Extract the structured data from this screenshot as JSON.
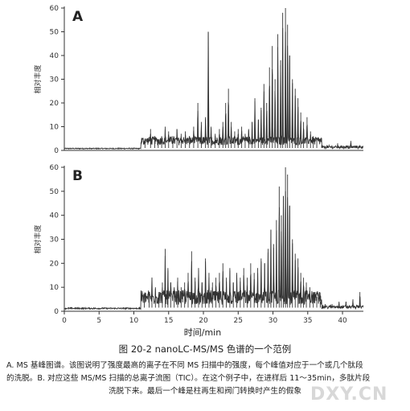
{
  "chart_data": [
    {
      "type": "line",
      "panel_label": "A",
      "ylabel": "相对丰度",
      "xlim": [
        0,
        43
      ],
      "ylim": [
        0,
        60
      ],
      "yticks": [
        0,
        10,
        20,
        30,
        40,
        50,
        60
      ],
      "xticks": [],
      "baseline": 1.0,
      "peaks": [
        [
          11.6,
          5
        ],
        [
          12.4,
          9
        ],
        [
          13.0,
          6
        ],
        [
          13.5,
          4
        ],
        [
          14.0,
          6
        ],
        [
          14.5,
          10
        ],
        [
          15.0,
          8
        ],
        [
          15.6,
          6
        ],
        [
          16.2,
          9
        ],
        [
          16.8,
          7
        ],
        [
          17.4,
          8
        ],
        [
          18.0,
          6
        ],
        [
          18.6,
          10
        ],
        [
          19.2,
          20
        ],
        [
          19.7,
          12
        ],
        [
          20.3,
          14
        ],
        [
          20.7,
          50
        ],
        [
          21.1,
          10
        ],
        [
          21.7,
          7
        ],
        [
          22.3,
          9
        ],
        [
          22.8,
          12
        ],
        [
          23.2,
          20
        ],
        [
          23.6,
          26
        ],
        [
          24.0,
          12
        ],
        [
          24.5,
          8
        ],
        [
          25.0,
          9
        ],
        [
          25.5,
          10
        ],
        [
          26.0,
          7
        ],
        [
          26.5,
          9
        ],
        [
          27.0,
          12
        ],
        [
          27.4,
          22
        ],
        [
          27.9,
          13
        ],
        [
          28.3,
          18
        ],
        [
          28.7,
          28
        ],
        [
          29.1,
          20
        ],
        [
          29.5,
          35
        ],
        [
          29.9,
          44
        ],
        [
          30.3,
          30
        ],
        [
          30.7,
          49
        ],
        [
          31.1,
          38
        ],
        [
          31.4,
          58
        ],
        [
          31.8,
          60
        ],
        [
          32.1,
          53
        ],
        [
          32.4,
          40
        ],
        [
          32.8,
          30
        ],
        [
          33.2,
          26
        ],
        [
          33.6,
          22
        ],
        [
          34.0,
          16
        ],
        [
          34.4,
          12
        ],
        [
          34.9,
          14
        ],
        [
          35.4,
          8
        ],
        [
          35.8,
          6
        ],
        [
          36.3,
          4
        ],
        [
          37.0,
          2
        ],
        [
          38.0,
          1.5
        ],
        [
          39.3,
          3
        ],
        [
          40.0,
          2
        ],
        [
          41.2,
          4
        ],
        [
          42.0,
          2
        ]
      ]
    },
    {
      "type": "line",
      "panel_label": "B",
      "ylabel": "相对丰度",
      "xlabel": "时间/min",
      "xlim": [
        0,
        43
      ],
      "ylim": [
        0,
        60
      ],
      "yticks": [
        0,
        10,
        20,
        30,
        40,
        50,
        60
      ],
      "xticks": [
        0,
        5,
        10,
        15,
        20,
        25,
        30,
        35,
        40
      ],
      "baseline": 1.5,
      "peaks": [
        [
          11.5,
          6
        ],
        [
          12.2,
          8
        ],
        [
          12.6,
          14
        ],
        [
          13.1,
          10
        ],
        [
          13.6,
          8
        ],
        [
          14.1,
          12
        ],
        [
          14.5,
          26
        ],
        [
          14.9,
          18
        ],
        [
          15.3,
          12
        ],
        [
          15.8,
          10
        ],
        [
          16.3,
          14
        ],
        [
          16.8,
          10
        ],
        [
          17.3,
          12
        ],
        [
          17.8,
          16
        ],
        [
          18.3,
          25
        ],
        [
          18.8,
          14
        ],
        [
          19.3,
          18
        ],
        [
          19.8,
          12
        ],
        [
          20.3,
          22
        ],
        [
          20.8,
          16
        ],
        [
          21.3,
          12
        ],
        [
          21.8,
          14
        ],
        [
          22.3,
          16
        ],
        [
          22.8,
          20
        ],
        [
          23.3,
          14
        ],
        [
          23.8,
          18
        ],
        [
          24.3,
          12
        ],
        [
          24.8,
          16
        ],
        [
          25.3,
          14
        ],
        [
          25.8,
          18
        ],
        [
          26.3,
          14
        ],
        [
          26.8,
          20
        ],
        [
          27.3,
          16
        ],
        [
          27.8,
          18
        ],
        [
          28.3,
          22
        ],
        [
          28.8,
          20
        ],
        [
          29.3,
          26
        ],
        [
          29.7,
          34
        ],
        [
          30.1,
          28
        ],
        [
          30.5,
          38
        ],
        [
          30.9,
          52
        ],
        [
          31.2,
          40
        ],
        [
          31.5,
          48
        ],
        [
          31.8,
          60
        ],
        [
          32.1,
          57
        ],
        [
          32.4,
          44
        ],
        [
          32.8,
          30
        ],
        [
          33.2,
          24
        ],
        [
          33.6,
          22
        ],
        [
          34.0,
          16
        ],
        [
          34.4,
          14
        ],
        [
          34.8,
          12
        ],
        [
          35.3,
          10
        ],
        [
          35.8,
          8
        ],
        [
          36.3,
          6
        ],
        [
          36.8,
          4
        ],
        [
          37.5,
          3
        ],
        [
          38.5,
          3
        ],
        [
          39.5,
          4
        ],
        [
          40.5,
          4
        ],
        [
          41.5,
          5
        ],
        [
          42.5,
          8
        ]
      ]
    }
  ],
  "caption": {
    "title": "图 20-2   nanoLC-MS/MS 色谱的一个范例",
    "line1": "A. MS 基峰图谱。该图说明了强度最高的离子在不同 MS 扫描中的强度，每个峰值对应于一个或几个肽段",
    "line2": "的洗脱。B. 对应这些 MS/MS 扫描的总离子流图（TIC）。在这个例子中，在进样后 11～35min，多肽片段",
    "line3": "洗脱下来。最后一个峰是柱再生和阀门转换时产生的假象"
  },
  "watermark": "DXY.CN"
}
